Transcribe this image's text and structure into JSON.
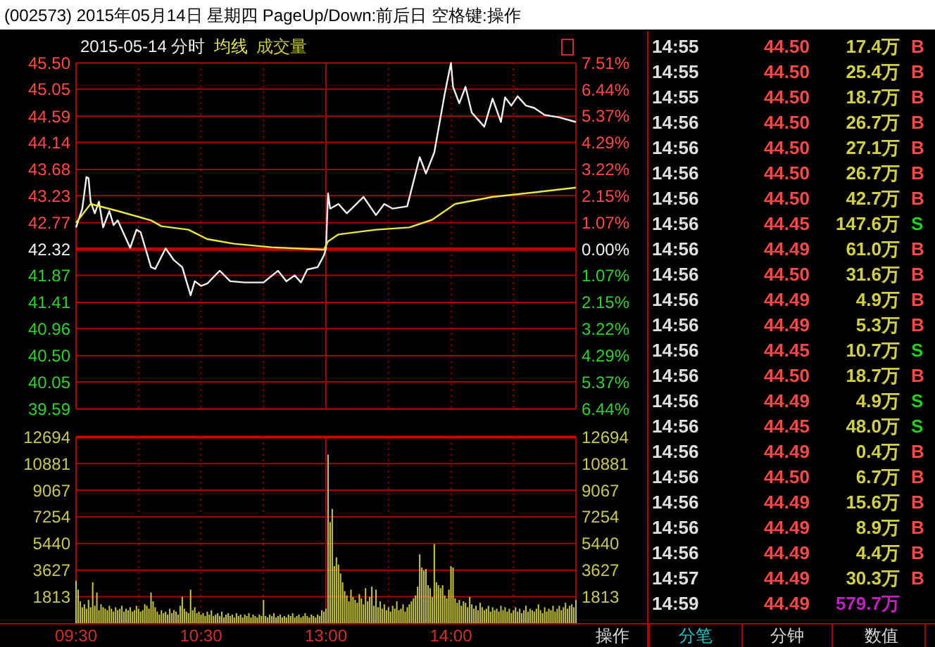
{
  "chart_data": [
    {
      "type": "line",
      "title": "(002573) 2015年05月14日 星期四 PageUp/Down:前后日 空格键:操作",
      "subtitle": "2015-05-14 分时",
      "categories": [
        null,
        null,
        null,
        null,
        null,
        null,
        null,
        null,
        null,
        null,
        null,
        null,
        null,
        null,
        null,
        null,
        null,
        null,
        null,
        null,
        null,
        null,
        null,
        null,
        null,
        null,
        null,
        null,
        null,
        null,
        null,
        null,
        null,
        null,
        null,
        null,
        null,
        null,
        null,
        null,
        null,
        null,
        null,
        null,
        null,
        null,
        null,
        null,
        null,
        null,
        null,
        null,
        null,
        null,
        null,
        null,
        null,
        null,
        null,
        null,
        null,
        null,
        null,
        null,
        null,
        null,
        null,
        null,
        null,
        null,
        null,
        null,
        null,
        null,
        null,
        null,
        null,
        null,
        null,
        null,
        null,
        null,
        null,
        null,
        null,
        null,
        null,
        null,
        null,
        null,
        null,
        null,
        null,
        null,
        null,
        null,
        null,
        null,
        null,
        null,
        null,
        null,
        null,
        null,
        null,
        null,
        null,
        null,
        null,
        null,
        null,
        null,
        null,
        null,
        null,
        null,
        null,
        null,
        null,
        null,
        null,
        null,
        null,
        null,
        null,
        null,
        null,
        null,
        null,
        null,
        null,
        null,
        null,
        null,
        null,
        null,
        null,
        null,
        null,
        null,
        null,
        null,
        null,
        null,
        null,
        null,
        null,
        null,
        null,
        null,
        null,
        null,
        null,
        null,
        null,
        null,
        null,
        null,
        null,
        null,
        null,
        null,
        null,
        null,
        null,
        null,
        null,
        null,
        null,
        null,
        null,
        null,
        null,
        null,
        null,
        null,
        null,
        null,
        null,
        null,
        null,
        null,
        null,
        null,
        null,
        null,
        null,
        null,
        null,
        null,
        null,
        null,
        null,
        null,
        null,
        null,
        null,
        null,
        null,
        null,
        null,
        null,
        null,
        null,
        null,
        null,
        null,
        null,
        null,
        null,
        null,
        null,
        null,
        null,
        null,
        null,
        null,
        null,
        null,
        null,
        null,
        null,
        null,
        null,
        null,
        null,
        null,
        null,
        null,
        null,
        null,
        null,
        null,
        null,
        null,
        null,
        null,
        null,
        null,
        null,
        null
      ],
      "ylim": [
        39.59,
        45.5
      ],
      "yticks": [
        {
          "value": 45.5,
          "label": "45.50"
        },
        45.05,
        44.59,
        44.14,
        43.68,
        43.23,
        42.77,
        42.32,
        41.87,
        41.41,
        40.96,
        {
          "value": 40.5,
          "label": "40.50"
        },
        40.05,
        39.59
      ],
      "y2lim": [
        -6.44,
        7.51
      ],
      "y2ticks": [
        {
          "value": 7.51,
          "label": "7.51%"
        },
        {
          "value": 6.44,
          "label": "6.44%"
        },
        {
          "value": 5.37,
          "label": "5.37%"
        },
        {
          "value": 4.29,
          "label": "4.29%"
        },
        {
          "value": 3.22,
          "label": "3.22%"
        },
        {
          "value": 2.15,
          "label": "2.15%"
        },
        {
          "value": 1.07,
          "label": "1.07%"
        },
        {
          "value": 0,
          "label": "0.00%"
        },
        {
          "value": -1.07,
          "label": "1.07%"
        },
        {
          "value": -2.15,
          "label": "2.15%"
        },
        {
          "value": -3.22,
          "label": "3.22%"
        },
        {
          "value": -4.29,
          "label": "4.29%"
        },
        {
          "value": -5.37,
          "label": "5.37%"
        },
        {
          "value": -6.44,
          "label": "6.44%"
        }
      ],
      "tick_labels": "y",
      "grid": true,
      "legend": "top left",
      "ref_lines": [
        {
          "axis": "y",
          "value": 42.32,
          "color": "#c00000"
        }
      ],
      "series": [
        {
          "color": "#f0f0f0",
          "values": [
            42.69,
            null,
            null,
            43.01,
            null,
            43.55,
            43.53,
            43.13,
            null,
            42.93,
            null,
            43.13,
            null,
            42.69,
            null,
            null,
            42.97,
            null,
            42.73,
            null,
            42.81,
            null,
            null,
            null,
            null,
            null,
            42.34,
            null,
            null,
            42.65,
            null,
            42.61,
            null,
            null,
            null,
            null,
            42.01,
            null,
            41.98,
            null,
            null,
            null,
            null,
            42.33,
            null,
            null,
            null,
            42.13,
            null,
            null,
            null,
            42.01,
            null,
            null,
            null,
            41.53,
            null,
            41.77,
            null,
            null,
            41.69,
            null,
            null,
            41.73,
            null,
            null,
            null,
            null,
            null,
            41.95,
            null,
            null,
            null,
            null,
            41.77,
            null,
            null,
            null,
            null,
            null,
            null,
            41.75,
            null,
            null,
            null,
            null,
            null,
            null,
            null,
            null,
            41.75,
            null,
            null,
            null,
            null,
            null,
            null,
            41.95,
            null,
            null,
            null,
            41.77,
            null,
            null,
            null,
            41.87,
            null,
            null,
            41.75,
            null,
            null,
            41.97,
            null,
            null,
            null,
            null,
            42.01,
            null,
            null,
            42.21,
            42.33,
            43.27,
            43.01,
            null,
            null,
            null,
            43.09,
            null,
            null,
            null,
            42.93,
            null,
            null,
            null,
            null,
            null,
            null,
            null,
            43.21,
            null,
            null,
            null,
            null,
            null,
            42.9,
            null,
            null,
            null,
            43.09,
            null,
            null,
            null,
            43.01,
            null,
            null,
            null,
            null,
            null,
            null,
            43.05,
            null,
            null,
            null,
            null,
            null,
            43.89,
            null,
            null,
            43.61,
            null,
            null,
            null,
            43.97,
            null,
            null,
            null,
            null,
            44.97,
            null,
            null,
            45.5,
            45.09,
            null,
            null,
            44.81,
            null,
            null,
            45.09,
            null,
            null,
            44.65,
            null,
            null,
            null,
            null,
            null,
            44.41,
            null,
            null,
            null,
            44.89,
            null,
            null,
            null,
            44.49,
            null,
            44.91,
            null,
            null,
            44.77,
            null,
            null,
            44.93,
            null,
            null,
            null,
            44.77,
            null,
            null,
            null,
            44.73,
            null,
            null,
            null,
            null,
            44.61,
            null,
            null,
            null,
            null,
            null,
            null,
            44.57,
            null,
            null,
            null,
            null,
            null,
            null,
            null,
            44.49
          ]
        },
        {
          "name": "均线",
          "color": "#e8e840",
          "values": [
            42.77,
            null,
            null,
            null,
            null,
            null,
            null,
            43.09,
            null,
            null,
            null,
            null,
            null,
            null,
            null,
            null,
            null,
            null,
            null,
            null,
            42.97,
            null,
            null,
            null,
            null,
            null,
            null,
            null,
            null,
            null,
            null,
            null,
            null,
            null,
            null,
            null,
            42.81,
            null,
            null,
            null,
            null,
            42.71,
            null,
            null,
            null,
            null,
            null,
            null,
            null,
            null,
            null,
            null,
            null,
            null,
            42.65,
            null,
            null,
            null,
            null,
            null,
            null,
            null,
            null,
            42.49,
            null,
            null,
            null,
            null,
            null,
            null,
            null,
            null,
            null,
            null,
            null,
            null,
            42.41,
            null,
            null,
            null,
            null,
            null,
            null,
            null,
            null,
            null,
            null,
            null,
            null,
            null,
            null,
            null,
            null,
            null,
            42.35,
            null,
            null,
            null,
            null,
            null,
            null,
            null,
            null,
            null,
            null,
            null,
            null,
            null,
            null,
            null,
            null,
            null,
            null,
            null,
            null,
            null,
            null,
            null,
            null,
            42.31,
            null,
            42.45,
            null,
            null,
            null,
            null,
            42.57,
            null,
            null,
            null,
            null,
            null,
            null,
            null,
            null,
            null,
            null,
            null,
            null,
            null,
            null,
            null,
            null,
            null,
            42.65,
            null,
            null,
            null,
            null,
            null,
            null,
            null,
            null,
            null,
            null,
            null,
            null,
            null,
            null,
            null,
            42.69,
            null,
            null,
            null,
            null,
            null,
            null,
            null,
            null,
            null,
            null,
            42.82,
            null,
            null,
            null,
            null,
            null,
            null,
            null,
            null,
            null,
            null,
            43.09,
            null,
            null,
            null,
            null,
            null,
            null,
            null,
            null,
            null,
            null,
            null,
            null,
            null,
            null,
            null,
            null,
            null,
            43.21,
            null,
            null,
            null,
            null,
            null,
            null,
            null,
            null,
            null,
            null,
            null,
            null,
            null,
            null,
            null,
            null,
            null,
            null,
            null,
            null,
            null,
            null,
            43.3,
            null,
            null,
            null,
            null,
            null,
            null,
            null,
            null,
            null,
            null,
            null,
            null,
            null,
            null,
            null,
            null,
            43.37
          ]
        }
      ]
    },
    {
      "type": "bar",
      "categories": [
        "09:30",
        null,
        null,
        null,
        null,
        null,
        null,
        null,
        null,
        null,
        null,
        null,
        null,
        null,
        null,
        null,
        null,
        null,
        null,
        null,
        null,
        null,
        null,
        null,
        null,
        null,
        null,
        null,
        null,
        null,
        null,
        null,
        null,
        null,
        null,
        null,
        null,
        null,
        null,
        null,
        null,
        null,
        null,
        null,
        null,
        null,
        null,
        null,
        null,
        null,
        null,
        null,
        null,
        null,
        null,
        null,
        null,
        null,
        null,
        null,
        "10:30",
        null,
        null,
        null,
        null,
        null,
        null,
        null,
        null,
        null,
        null,
        null,
        null,
        null,
        null,
        null,
        null,
        null,
        null,
        null,
        null,
        null,
        null,
        null,
        null,
        null,
        null,
        null,
        null,
        null,
        null,
        null,
        null,
        null,
        null,
        null,
        null,
        null,
        null,
        null,
        null,
        null,
        null,
        null,
        null,
        null,
        null,
        null,
        null,
        null,
        null,
        null,
        null,
        null,
        null,
        null,
        null,
        null,
        null,
        null,
        "13:00",
        null,
        null,
        null,
        null,
        null,
        null,
        null,
        null,
        null,
        null,
        null,
        null,
        null,
        null,
        null,
        null,
        null,
        null,
        null,
        null,
        null,
        null,
        null,
        null,
        null,
        null,
        null,
        null,
        null,
        null,
        null,
        null,
        null,
        null,
        null,
        null,
        null,
        null,
        null,
        null,
        null,
        null,
        null,
        null,
        null,
        null,
        null,
        null,
        null,
        null,
        null,
        null,
        null,
        null,
        null,
        null,
        null,
        null,
        null,
        "14:00",
        null,
        null,
        null,
        null,
        null,
        null,
        null,
        null,
        null,
        null,
        null,
        null,
        null,
        null,
        null,
        null,
        null,
        null,
        null,
        null,
        null,
        null,
        null,
        null,
        null,
        null,
        null,
        null,
        null,
        null,
        null,
        null,
        null,
        null,
        null,
        null,
        null,
        null,
        null,
        null,
        null,
        null,
        null,
        null,
        null,
        null,
        null,
        null,
        null,
        null,
        null,
        null,
        null,
        null,
        null,
        null,
        null,
        null,
        null,
        null
      ],
      "ylim": [
        0,
        12694
      ],
      "yticks": [
        1813,
        3627,
        5440,
        7254,
        9067,
        10881,
        12694
      ],
      "y2lim": [
        0,
        12694
      ],
      "y2ticks": [
        1813,
        3627,
        5440,
        7254,
        9067,
        10881,
        12694
      ],
      "grid": true,
      "legend": "top left",
      "series": [
        {
          "name": "成交量",
          "color": "#c8c830",
          "values": [
            2900,
            2300,
            1500,
            1100,
            1300,
            1000,
            1600,
            1100,
            2800,
            1200,
            2100,
            900,
            1300,
            1100,
            1000,
            900,
            1200,
            1000,
            800,
            1100,
            900,
            1000,
            1200,
            800,
            1000,
            900,
            1100,
            800,
            900,
            1200,
            1000,
            800,
            900,
            1300,
            1200,
            1000,
            2100,
            1500,
            1100,
            800,
            600,
            900,
            700,
            800,
            600,
            1000,
            700,
            900,
            800,
            600,
            1200,
            1800,
            1000,
            800,
            700,
            2300,
            900,
            1100,
            700,
            800,
            600,
            700,
            500,
            800,
            600,
            900,
            500,
            600,
            700,
            500,
            800,
            400,
            600,
            700,
            500,
            600,
            400,
            700,
            500,
            600,
            400,
            600,
            500,
            700,
            400,
            600,
            500,
            400,
            600,
            500,
            1600,
            500,
            400,
            600,
            500,
            700,
            400,
            500,
            600,
            400,
            500,
            400,
            600,
            500,
            700,
            400,
            500,
            600,
            400,
            500,
            700,
            500,
            400,
            600,
            500,
            400,
            600,
            500,
            900,
            800,
            1000,
            11500,
            6900,
            7800,
            3900,
            4500,
            4000,
            3400,
            2800,
            2200,
            1900,
            1500,
            2300,
            1800,
            1600,
            1400,
            2000,
            1700,
            1300,
            2400,
            1500,
            1800,
            2500,
            1200,
            2300,
            1100,
            1500,
            1000,
            1300,
            900,
            1100,
            800,
            1200,
            1000,
            1500,
            900,
            1000,
            1300,
            800,
            1100,
            1300,
            1500,
            1700,
            1900,
            2500,
            4700,
            3800,
            3600,
            3700,
            2600,
            2400,
            1800,
            5400,
            2800,
            2600,
            2400,
            2600,
            1900,
            1700,
            2300,
            3900,
            3800,
            1700,
            1400,
            1600,
            1200,
            1500,
            1400,
            1100,
            1800,
            1300,
            1000,
            1200,
            900,
            1400,
            1100,
            900,
            1000,
            1200,
            800,
            1100,
            900,
            1000,
            800,
            1200,
            900,
            1100,
            800,
            1000,
            700,
            900,
            1100,
            800,
            1000,
            700,
            900,
            1200,
            800,
            1000,
            900,
            800,
            1000,
            1300,
            900,
            700,
            1100,
            800,
            1000,
            900,
            1200,
            800,
            1000,
            1200,
            900,
            1100,
            1400,
            1000,
            1200,
            1300,
            1100,
            1600
          ]
        }
      ]
    },
    {
      "type": "other",
      "categories": [
        "操作",
        "分笔",
        "分钟",
        "数值"
      ],
      "annotations": [
        "14:55",
        "44.50",
        "17.4万",
        "B",
        "14:55",
        "44.50",
        "25.4万",
        "B",
        "14:55",
        "44.50",
        "18.7万",
        "B",
        "14:56",
        "44.50",
        "26.7万",
        "B",
        "14:56",
        "44.50",
        "27.1万",
        "B",
        "14:56",
        "44.50",
        "26.7万",
        "B",
        "14:56",
        "44.50",
        "42.7万",
        "B",
        "14:56",
        "44.45",
        "147.6万",
        "S",
        "14:56",
        "44.49",
        "61.0万",
        "B",
        "14:56",
        "44.50",
        "31.6万",
        "B",
        "14:56",
        "44.49",
        "4.9万",
        "B",
        "14:56",
        "44.49",
        "5.3万",
        "B",
        "14:56",
        "44.45",
        "10.7万",
        "S",
        "14:56",
        "44.50",
        "18.7万",
        "B",
        "14:56",
        "44.49",
        "4.9万",
        "S",
        "14:56",
        "44.45",
        "48.0万",
        "S",
        "14:56",
        "44.49",
        "0.4万",
        "B",
        "14:56",
        "44.50",
        "6.7万",
        "B",
        "14:56",
        "44.49",
        "15.6万",
        "B",
        "14:56",
        "44.49",
        "8.9万",
        "B",
        "14:56",
        "44.49",
        "4.4万",
        "B",
        "14:57",
        "44.49",
        "30.3万",
        "B",
        "14:59",
        "44.49",
        "579.7万"
      ],
      "colors": [
        "#e0e0e0",
        "#ff4848",
        "#d0d040",
        "#ff4848",
        "#e0e0e0",
        "#ff4848",
        "#d0d040",
        "#ff4848",
        "#e0e0e0",
        "#ff4848",
        "#d0d040",
        "#ff4848",
        "#e0e0e0",
        "#ff4848",
        "#d0d040",
        "#ff4848",
        "#e0e0e0",
        "#ff4848",
        "#d0d040",
        "#ff4848",
        "#e0e0e0",
        "#ff4848",
        "#d0d040",
        "#ff4848",
        "#e0e0e0",
        "#ff4848",
        "#d0d040",
        "#ff4848",
        "#e0e0e0",
        "#ff4848",
        "#d0d040",
        "#20d020",
        "#e0e0e0",
        "#ff4848",
        "#d0d040",
        "#ff4848",
        "#e0e0e0",
        "#ff4848",
        "#d0d040",
        "#ff4848",
        "#e0e0e0",
        "#ff4848",
        "#d0d040",
        "#ff4848",
        "#e0e0e0",
        "#ff4848",
        "#d0d040",
        "#ff4848",
        "#e0e0e0",
        "#ff4848",
        "#d0d040",
        "#20d020",
        "#e0e0e0",
        "#ff4848",
        "#d0d040",
        "#ff4848",
        "#e0e0e0",
        "#ff4848",
        "#d0d040",
        "#20d020",
        "#e0e0e0",
        "#ff4848",
        "#d0d040",
        "#20d020",
        "#e0e0e0",
        "#ff4848",
        "#d0d040",
        "#ff4848",
        "#e0e0e0",
        "#ff4848",
        "#d0d040",
        "#ff4848",
        "#e0e0e0",
        "#ff4848",
        "#d0d040",
        "#ff4848",
        "#e0e0e0",
        "#ff4848",
        "#d0d040",
        "#ff4848",
        "#e0e0e0",
        "#ff4848",
        "#d0d040",
        "#ff4848",
        "#e0e0e0",
        "#ff4848",
        "#d0d040",
        "#ff4848",
        "#e0e0e0",
        "#ff4848",
        "#c020c0",
        "#d8d8d8",
        "#20c8c8",
        "#d8d8d8",
        "#d8d8d8"
      ]
    }
  ]
}
